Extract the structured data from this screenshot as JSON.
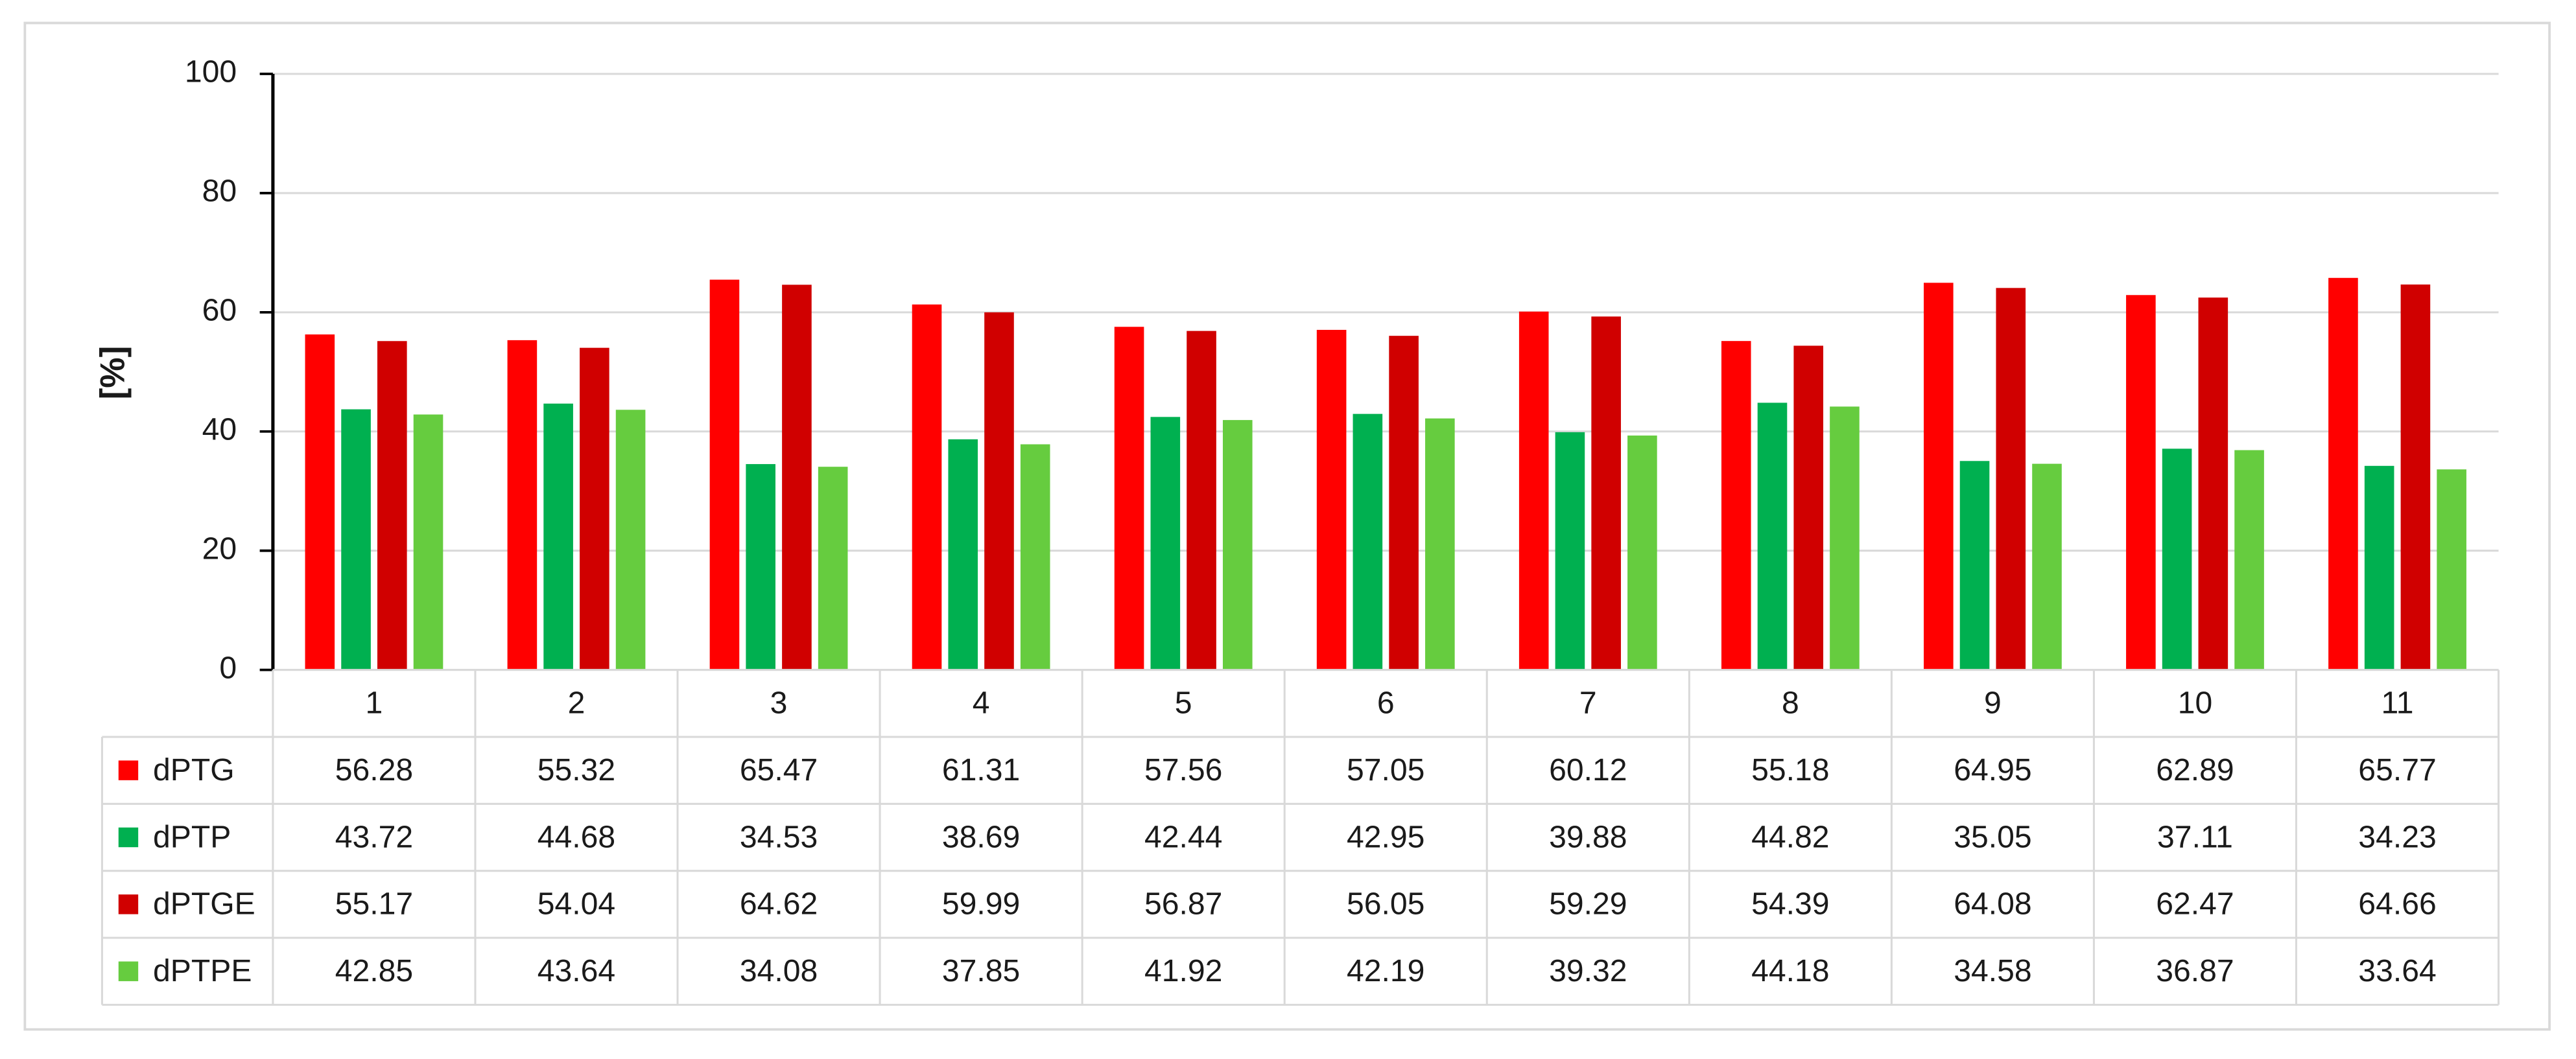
{
  "chart_data": {
    "type": "bar",
    "y_label": "[%]",
    "categories": [
      "1",
      "2",
      "3",
      "4",
      "5",
      "6",
      "7",
      "8",
      "9",
      "10",
      "11"
    ],
    "series": [
      {
        "name": "dPTG",
        "color": "#ff0000",
        "values": [
          56.28,
          55.32,
          65.47,
          61.31,
          57.56,
          57.05,
          60.12,
          55.18,
          64.95,
          62.89,
          65.77
        ]
      },
      {
        "name": "dPTP",
        "color": "#00b050",
        "values": [
          43.72,
          44.68,
          34.53,
          38.69,
          42.44,
          42.95,
          39.88,
          44.82,
          35.05,
          37.11,
          34.23
        ]
      },
      {
        "name": "dPTGE",
        "color": "#d00000",
        "values": [
          55.17,
          54.04,
          64.62,
          59.99,
          56.87,
          56.05,
          59.29,
          54.39,
          64.08,
          62.47,
          64.66
        ]
      },
      {
        "name": "dPTPE",
        "color": "#66cc3f",
        "values": [
          42.85,
          43.64,
          34.08,
          37.85,
          41.92,
          42.19,
          39.32,
          44.18,
          34.58,
          36.87,
          33.64
        ]
      }
    ],
    "ylim": [
      0,
      100
    ],
    "yticks": [
      0,
      20,
      40,
      60,
      80,
      100
    ],
    "grid": true,
    "data_table": true
  }
}
